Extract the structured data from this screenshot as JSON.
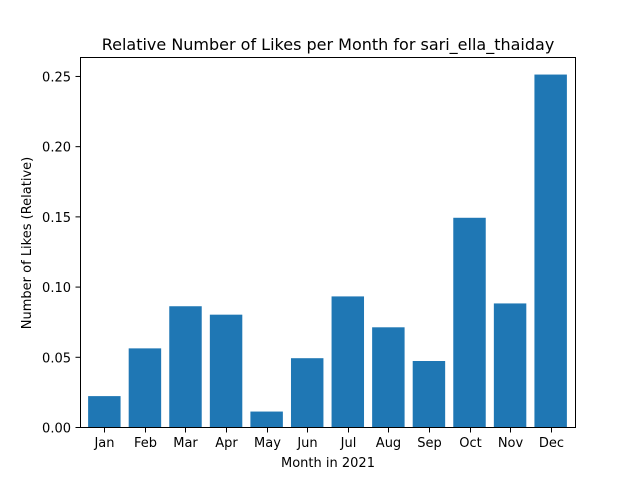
{
  "chart_data": {
    "type": "bar",
    "title": "Relative Number of Likes per Month for sari_ella_thaiday",
    "xlabel": "Month in 2021",
    "ylabel": "Number of Likes (Relative)",
    "categories": [
      "Jan",
      "Feb",
      "Mar",
      "Apr",
      "May",
      "Jun",
      "Jul",
      "Aug",
      "Sep",
      "Oct",
      "Nov",
      "Dec"
    ],
    "values": [
      0.022,
      0.056,
      0.086,
      0.08,
      0.011,
      0.049,
      0.093,
      0.071,
      0.047,
      0.149,
      0.088,
      0.251
    ],
    "ylim": [
      0,
      0.2635
    ],
    "yticks": [
      0.0,
      0.05,
      0.1,
      0.15,
      0.2,
      0.25
    ],
    "ytick_labels": [
      "0.00",
      "0.05",
      "0.10",
      "0.15",
      "0.20",
      "0.25"
    ],
    "bar_color": "#1f77b4",
    "grid": false,
    "legend": "none"
  }
}
